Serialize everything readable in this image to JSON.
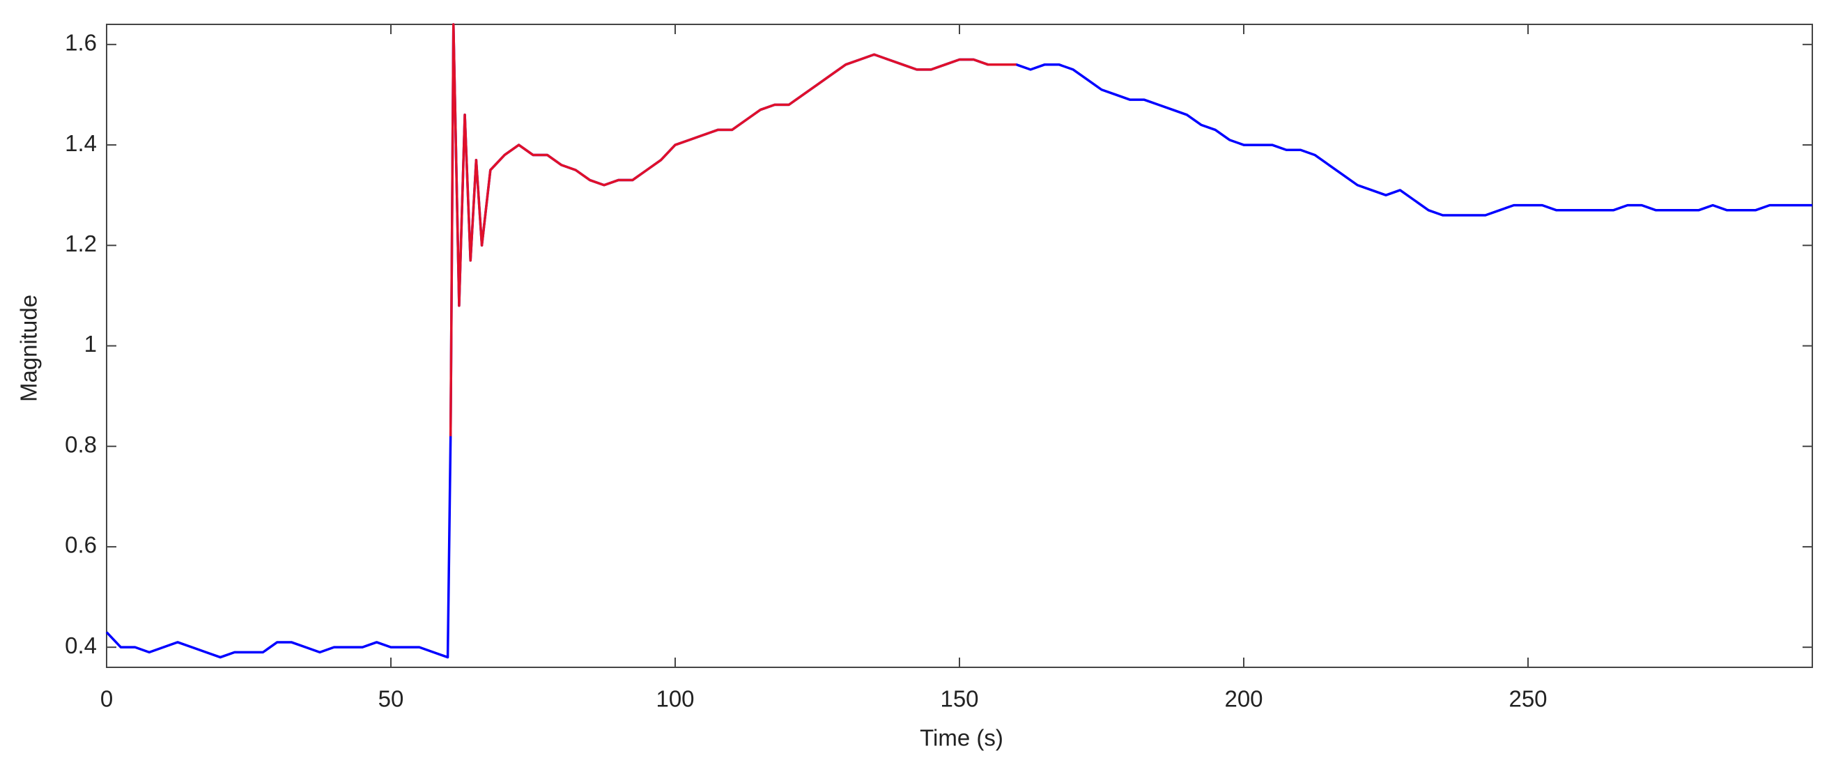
{
  "chart_data": {
    "type": "line",
    "xlabel": "Time (s)",
    "ylabel": "Magnitude",
    "x": [
      0,
      2.5,
      5,
      7.5,
      10,
      12.5,
      15,
      17.5,
      20,
      22.5,
      25,
      27.5,
      30,
      32.5,
      35,
      37.5,
      40,
      42.5,
      45,
      47.5,
      50,
      52.5,
      55,
      57.5,
      60,
      60.5,
      61,
      62,
      63,
      64,
      65,
      66,
      67.5,
      70,
      72.5,
      75,
      77.5,
      80,
      82.5,
      85,
      87.5,
      90,
      92.5,
      95,
      97.5,
      100,
      102.5,
      105,
      107.5,
      110,
      112.5,
      115,
      117.5,
      120,
      122.5,
      125,
      127.5,
      130,
      132.5,
      135,
      137.5,
      140,
      142.5,
      145,
      147.5,
      150,
      152.5,
      155,
      157.5,
      160,
      162.5,
      165,
      167.5,
      170,
      172.5,
      175,
      177.5,
      180,
      182.5,
      185,
      187.5,
      190,
      192.5,
      195,
      197.5,
      200,
      202.5,
      205,
      207.5,
      210,
      212.5,
      215,
      217.5,
      220,
      222.5,
      225,
      227.5,
      230,
      232.5,
      235,
      237.5,
      240,
      242.5,
      245,
      247.5,
      250,
      252.5,
      255,
      257.5,
      260,
      262.5,
      265,
      267.5,
      270,
      272.5,
      275,
      277.5,
      280,
      282.5,
      285,
      287.5,
      290,
      292.5,
      295,
      297.5,
      300
    ],
    "series": [
      {
        "color": "#0000ff",
        "values": [
          0.43,
          0.4,
          0.4,
          0.39,
          0.4,
          0.41,
          0.4,
          0.39,
          0.38,
          0.39,
          0.39,
          0.39,
          0.41,
          0.41,
          0.4,
          0.39,
          0.4,
          0.4,
          0.4,
          0.41,
          0.4,
          0.4,
          0.4,
          0.39,
          0.38,
          0.82,
          1.64,
          1.08,
          1.46,
          1.17,
          1.37,
          1.2,
          1.35,
          1.38,
          1.4,
          1.38,
          1.38,
          1.36,
          1.35,
          1.33,
          1.32,
          1.33,
          1.33,
          1.35,
          1.37,
          1.4,
          1.41,
          1.42,
          1.43,
          1.43,
          1.45,
          1.47,
          1.48,
          1.48,
          1.5,
          1.52,
          1.54,
          1.56,
          1.57,
          1.58,
          1.57,
          1.56,
          1.55,
          1.55,
          1.56,
          1.57,
          1.57,
          1.56,
          1.56,
          1.56,
          1.55,
          1.56,
          1.56,
          1.55,
          1.53,
          1.51,
          1.5,
          1.49,
          1.49,
          1.48,
          1.47,
          1.46,
          1.44,
          1.43,
          1.41,
          1.4,
          1.4,
          1.4,
          1.39,
          1.39,
          1.38,
          1.36,
          1.34,
          1.32,
          1.31,
          1.3,
          1.31,
          1.29,
          1.27,
          1.26,
          1.26,
          1.26,
          1.26,
          1.27,
          1.28,
          1.28,
          1.28,
          1.27,
          1.27,
          1.27,
          1.27,
          1.27,
          1.28,
          1.28,
          1.27,
          1.27,
          1.27,
          1.27,
          1.28,
          1.27,
          1.27,
          1.27,
          1.28,
          1.28,
          1.28,
          1.28
        ]
      },
      {
        "color": "#e0102a",
        "values": [
          null,
          null,
          null,
          null,
          null,
          null,
          null,
          null,
          null,
          null,
          null,
          null,
          null,
          null,
          null,
          null,
          null,
          null,
          null,
          null,
          null,
          null,
          null,
          null,
          null,
          0.82,
          1.64,
          1.08,
          1.46,
          1.17,
          1.37,
          1.2,
          1.35,
          1.38,
          1.4,
          1.38,
          1.38,
          1.36,
          1.35,
          1.33,
          1.32,
          1.33,
          1.33,
          1.35,
          1.37,
          1.4,
          1.41,
          1.42,
          1.43,
          1.43,
          1.45,
          1.47,
          1.48,
          1.48,
          1.5,
          1.52,
          1.54,
          1.56,
          1.57,
          1.58,
          1.57,
          1.56,
          1.55,
          1.55,
          1.56,
          1.57,
          1.57,
          1.56,
          1.56,
          1.56,
          null,
          null,
          null,
          null,
          null,
          null,
          null,
          null,
          null,
          null,
          null,
          null,
          null,
          null,
          null,
          null,
          null,
          null,
          null,
          null,
          null,
          null,
          null,
          null,
          null,
          null,
          null,
          null,
          null,
          null,
          null,
          null,
          null,
          null,
          null,
          null,
          null,
          null,
          null,
          null,
          null,
          null,
          null,
          null,
          null,
          null,
          null,
          null,
          null,
          null,
          null,
          null,
          null,
          null,
          null,
          null
        ]
      }
    ],
    "xlim": [
      0,
      300
    ],
    "xticks": [
      0,
      50,
      100,
      150,
      200,
      250
    ],
    "ylim": [
      0.36,
      1.64
    ],
    "yticks": [
      0.4,
      0.6,
      0.8,
      1,
      1.2,
      1.4,
      1.6
    ]
  }
}
